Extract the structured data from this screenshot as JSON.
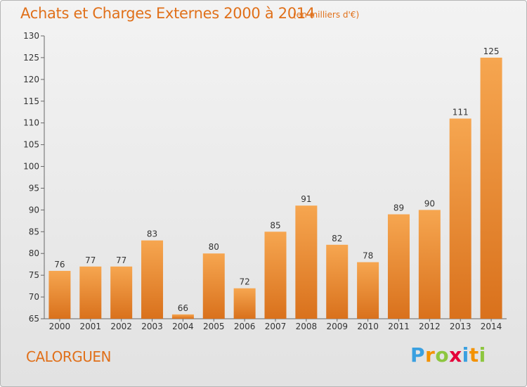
{
  "title": "Achats et Charges Externes 2000 à 2014",
  "subtitle": "(en milliers d'€)",
  "place_name": "CALORGUEN",
  "brand": {
    "text": "Proxiti",
    "colors": [
      "#3aa0e0",
      "#f39200",
      "#8dc63f",
      "#e4003a",
      "#3aa0e0",
      "#f39200",
      "#8dc63f"
    ]
  },
  "colors": {
    "accent": "#e0701a",
    "bar_light": "#f6a650",
    "bar_dark": "#d9711c",
    "text": "#333333"
  },
  "chart_data": {
    "type": "bar",
    "title": "Achats et Charges Externes 2000 à 2014",
    "subtitle": "(en milliers d'€)",
    "xlabel": "",
    "ylabel": "",
    "categories": [
      "2000",
      "2001",
      "2002",
      "2003",
      "2004",
      "2005",
      "2006",
      "2007",
      "2008",
      "2009",
      "2010",
      "2011",
      "2012",
      "2013",
      "2014"
    ],
    "values": [
      76,
      77,
      77,
      83,
      66,
      80,
      72,
      85,
      91,
      82,
      78,
      89,
      90,
      111,
      125
    ],
    "ylim": [
      65,
      130
    ],
    "yticks": [
      65,
      70,
      75,
      80,
      85,
      90,
      95,
      100,
      105,
      110,
      115,
      120,
      125,
      130
    ],
    "grid": false,
    "data_labels": true
  }
}
